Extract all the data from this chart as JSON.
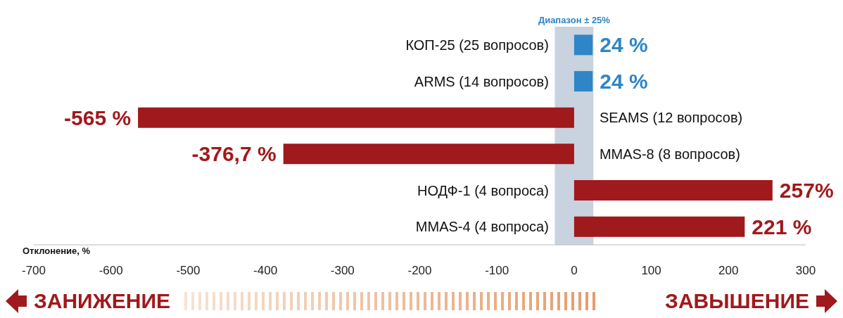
{
  "chart_data": {
    "type": "bar",
    "orientation": "horizontal",
    "xlabel": "Отклонение, %",
    "categories": [
      "КОП-25 (25 вопросов)",
      "ARMS (14 вопросов)",
      "SEAMS (12 вопросов)",
      "MMAS-8 (8 вопросов)",
      "НОДФ-1 (4 вопроса)",
      "MMAS-4 (4 вопроса)"
    ],
    "values": [
      24,
      24,
      -565,
      -376.7,
      257,
      221
    ],
    "colors": [
      "#2e86c8",
      "#2e86c8",
      "#a0191c",
      "#a0191c",
      "#a0191c",
      "#a0191c"
    ],
    "value_labels": [
      "24 %",
      "24 %",
      "-565 %",
      "-376,7 %",
      "257%",
      "221 %"
    ],
    "xlim": [
      -700,
      300
    ],
    "xticks": [
      -700,
      -600,
      -500,
      -400,
      -300,
      -200,
      -100,
      0,
      100,
      200,
      300
    ],
    "bands": [
      {
        "axis": "x",
        "from": -25,
        "to": 25,
        "label": "Диапазон ± 25%",
        "color": "#c8d3df"
      }
    ],
    "grid": false,
    "legend": false,
    "annotations": [
      "ЗАНИЖЕНИЕ",
      "ЗАВЫШЕНИЕ"
    ]
  }
}
